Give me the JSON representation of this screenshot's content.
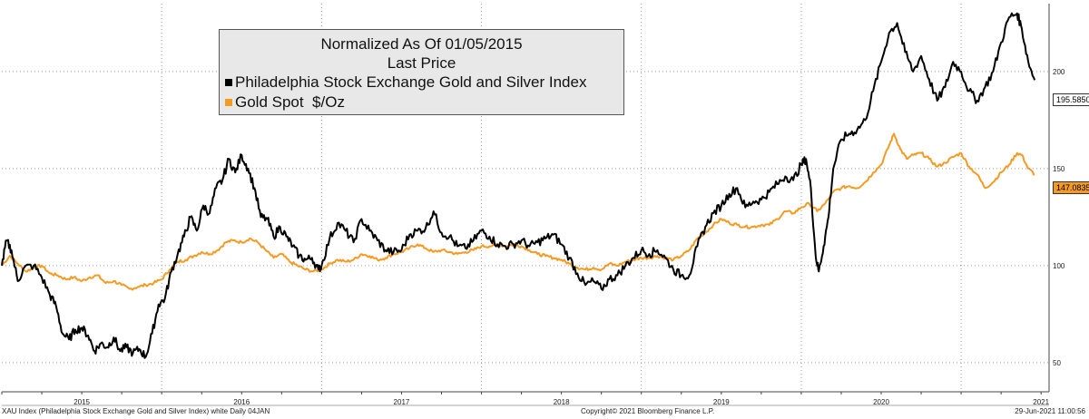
{
  "chart_data": {
    "type": "line",
    "legend": {
      "title_line1": "Normalized As Of 01/05/2015",
      "title_line2": "Last Price",
      "position": "top-center"
    },
    "x_tick_labels": [
      "2015",
      "2016",
      "2017",
      "2018",
      "2019",
      "2020",
      "2021"
    ],
    "y_tick_labels": [
      "50",
      "100",
      "150",
      "200"
    ],
    "ylim": [
      35,
      235
    ],
    "xlim": [
      2015.0,
      2021.55
    ],
    "grid": true,
    "colors": {
      "xau": "#000000",
      "gold": "#f59a23"
    },
    "series": [
      {
        "name": "Philadelphia Stock Exchange Gold and Silver Index",
        "last_value_label": "195.5850",
        "points": [
          [
            2015.0,
            100
          ],
          [
            2015.03,
            113
          ],
          [
            2015.06,
            108
          ],
          [
            2015.1,
            92
          ],
          [
            2015.14,
            99
          ],
          [
            2015.2,
            100
          ],
          [
            2015.25,
            94
          ],
          [
            2015.3,
            85
          ],
          [
            2015.34,
            79
          ],
          [
            2015.38,
            65
          ],
          [
            2015.42,
            62
          ],
          [
            2015.46,
            67
          ],
          [
            2015.5,
            68
          ],
          [
            2015.54,
            64
          ],
          [
            2015.58,
            56
          ],
          [
            2015.62,
            60
          ],
          [
            2015.66,
            58
          ],
          [
            2015.7,
            63
          ],
          [
            2015.74,
            56
          ],
          [
            2015.78,
            58
          ],
          [
            2015.82,
            55
          ],
          [
            2015.86,
            57
          ],
          [
            2015.9,
            53
          ],
          [
            2015.94,
            65
          ],
          [
            2015.98,
            80
          ],
          [
            2016.02,
            83
          ],
          [
            2016.06,
            97
          ],
          [
            2016.1,
            106
          ],
          [
            2016.14,
            115
          ],
          [
            2016.18,
            125
          ],
          [
            2016.22,
            118
          ],
          [
            2016.26,
            131
          ],
          [
            2016.3,
            127
          ],
          [
            2016.34,
            140
          ],
          [
            2016.38,
            144
          ],
          [
            2016.42,
            155
          ],
          [
            2016.46,
            148
          ],
          [
            2016.5,
            157
          ],
          [
            2016.54,
            150
          ],
          [
            2016.58,
            140
          ],
          [
            2016.62,
            125
          ],
          [
            2016.66,
            124
          ],
          [
            2016.7,
            115
          ],
          [
            2016.74,
            120
          ],
          [
            2016.78,
            115
          ],
          [
            2016.82,
            110
          ],
          [
            2016.86,
            105
          ],
          [
            2016.9,
            103
          ],
          [
            2016.94,
            104
          ],
          [
            2016.98,
            98
          ],
          [
            2017.0,
            100
          ],
          [
            2017.05,
            114
          ],
          [
            2017.1,
            122
          ],
          [
            2017.15,
            118
          ],
          [
            2017.2,
            112
          ],
          [
            2017.25,
            124
          ],
          [
            2017.3,
            118
          ],
          [
            2017.35,
            113
          ],
          [
            2017.4,
            108
          ],
          [
            2017.45,
            107
          ],
          [
            2017.5,
            108
          ],
          [
            2017.55,
            116
          ],
          [
            2017.6,
            118
          ],
          [
            2017.65,
            119
          ],
          [
            2017.7,
            128
          ],
          [
            2017.75,
            117
          ],
          [
            2017.8,
            115
          ],
          [
            2017.85,
            110
          ],
          [
            2017.9,
            109
          ],
          [
            2017.95,
            113
          ],
          [
            2018.0,
            118
          ],
          [
            2018.05,
            115
          ],
          [
            2018.1,
            111
          ],
          [
            2018.15,
            110
          ],
          [
            2018.2,
            111
          ],
          [
            2018.25,
            113
          ],
          [
            2018.3,
            110
          ],
          [
            2018.35,
            112
          ],
          [
            2018.4,
            114
          ],
          [
            2018.45,
            116
          ],
          [
            2018.5,
            111
          ],
          [
            2018.55,
            104
          ],
          [
            2018.6,
            96
          ],
          [
            2018.65,
            90
          ],
          [
            2018.7,
            92
          ],
          [
            2018.75,
            88
          ],
          [
            2018.8,
            93
          ],
          [
            2018.85,
            95
          ],
          [
            2018.9,
            100
          ],
          [
            2018.95,
            104
          ],
          [
            2019.0,
            108
          ],
          [
            2019.05,
            106
          ],
          [
            2019.1,
            108
          ],
          [
            2019.15,
            104
          ],
          [
            2019.2,
            98
          ],
          [
            2019.25,
            95
          ],
          [
            2019.3,
            95
          ],
          [
            2019.35,
            110
          ],
          [
            2019.4,
            120
          ],
          [
            2019.45,
            127
          ],
          [
            2019.5,
            131
          ],
          [
            2019.55,
            137
          ],
          [
            2019.6,
            140
          ],
          [
            2019.65,
            130
          ],
          [
            2019.7,
            133
          ],
          [
            2019.75,
            134
          ],
          [
            2019.8,
            138
          ],
          [
            2019.85,
            142
          ],
          [
            2019.9,
            146
          ],
          [
            2019.95,
            144
          ],
          [
            2020.0,
            152
          ],
          [
            2020.03,
            155
          ],
          [
            2020.06,
            140
          ],
          [
            2020.09,
            105
          ],
          [
            2020.11,
            97
          ],
          [
            2020.14,
            110
          ],
          [
            2020.17,
            125
          ],
          [
            2020.2,
            150
          ],
          [
            2020.25,
            165
          ],
          [
            2020.3,
            168
          ],
          [
            2020.35,
            170
          ],
          [
            2020.4,
            175
          ],
          [
            2020.45,
            190
          ],
          [
            2020.5,
            205
          ],
          [
            2020.55,
            220
          ],
          [
            2020.6,
            225
          ],
          [
            2020.65,
            210
          ],
          [
            2020.7,
            200
          ],
          [
            2020.75,
            208
          ],
          [
            2020.8,
            196
          ],
          [
            2020.85,
            185
          ],
          [
            2020.9,
            192
          ],
          [
            2020.95,
            205
          ],
          [
            2021.0,
            200
          ],
          [
            2021.05,
            190
          ],
          [
            2021.1,
            185
          ],
          [
            2021.15,
            192
          ],
          [
            2021.2,
            200
          ],
          [
            2021.25,
            215
          ],
          [
            2021.3,
            228
          ],
          [
            2021.35,
            230
          ],
          [
            2021.38,
            222
          ],
          [
            2021.42,
            205
          ],
          [
            2021.46,
            195.585
          ]
        ]
      },
      {
        "name": "Gold Spot  $/Oz",
        "last_value_label": "147.0835",
        "points": [
          [
            2015.0,
            100
          ],
          [
            2015.05,
            105
          ],
          [
            2015.1,
            101
          ],
          [
            2015.15,
            97
          ],
          [
            2015.2,
            99
          ],
          [
            2015.25,
            100
          ],
          [
            2015.3,
            96
          ],
          [
            2015.35,
            95
          ],
          [
            2015.4,
            93
          ],
          [
            2015.45,
            94
          ],
          [
            2015.5,
            92
          ],
          [
            2015.55,
            94
          ],
          [
            2015.6,
            95
          ],
          [
            2015.65,
            91
          ],
          [
            2015.7,
            92
          ],
          [
            2015.75,
            90
          ],
          [
            2015.8,
            88
          ],
          [
            2015.85,
            89
          ],
          [
            2015.9,
            90
          ],
          [
            2015.95,
            91
          ],
          [
            2016.0,
            93
          ],
          [
            2016.05,
            98
          ],
          [
            2016.1,
            102
          ],
          [
            2016.15,
            103
          ],
          [
            2016.2,
            105
          ],
          [
            2016.25,
            107
          ],
          [
            2016.3,
            106
          ],
          [
            2016.35,
            108
          ],
          [
            2016.4,
            112
          ],
          [
            2016.45,
            113
          ],
          [
            2016.5,
            112
          ],
          [
            2016.55,
            114
          ],
          [
            2016.6,
            112
          ],
          [
            2016.65,
            108
          ],
          [
            2016.7,
            104
          ],
          [
            2016.75,
            106
          ],
          [
            2016.8,
            102
          ],
          [
            2016.85,
            100
          ],
          [
            2016.9,
            98
          ],
          [
            2016.95,
            97
          ],
          [
            2017.0,
            98
          ],
          [
            2017.05,
            101
          ],
          [
            2017.1,
            103
          ],
          [
            2017.15,
            102
          ],
          [
            2017.2,
            103
          ],
          [
            2017.25,
            106
          ],
          [
            2017.3,
            105
          ],
          [
            2017.35,
            103
          ],
          [
            2017.4,
            104
          ],
          [
            2017.45,
            106
          ],
          [
            2017.5,
            107
          ],
          [
            2017.55,
            109
          ],
          [
            2017.6,
            111
          ],
          [
            2017.65,
            109
          ],
          [
            2017.7,
            107
          ],
          [
            2017.75,
            108
          ],
          [
            2017.8,
            107
          ],
          [
            2017.85,
            106
          ],
          [
            2017.9,
            107
          ],
          [
            2017.95,
            108
          ],
          [
            2018.0,
            110
          ],
          [
            2018.05,
            110
          ],
          [
            2018.1,
            111
          ],
          [
            2018.15,
            110
          ],
          [
            2018.2,
            111
          ],
          [
            2018.25,
            110
          ],
          [
            2018.3,
            108
          ],
          [
            2018.35,
            106
          ],
          [
            2018.4,
            105
          ],
          [
            2018.45,
            104
          ],
          [
            2018.5,
            103
          ],
          [
            2018.55,
            101
          ],
          [
            2018.6,
            99
          ],
          [
            2018.65,
            98
          ],
          [
            2018.7,
            99
          ],
          [
            2018.75,
            98
          ],
          [
            2018.8,
            101
          ],
          [
            2018.85,
            100
          ],
          [
            2018.9,
            102
          ],
          [
            2018.95,
            103
          ],
          [
            2019.0,
            104
          ],
          [
            2019.05,
            104
          ],
          [
            2019.1,
            105
          ],
          [
            2019.15,
            104
          ],
          [
            2019.2,
            103
          ],
          [
            2019.25,
            105
          ],
          [
            2019.3,
            108
          ],
          [
            2019.35,
            114
          ],
          [
            2019.4,
            117
          ],
          [
            2019.45,
            121
          ],
          [
            2019.5,
            124
          ],
          [
            2019.55,
            122
          ],
          [
            2019.6,
            121
          ],
          [
            2019.65,
            120
          ],
          [
            2019.7,
            120
          ],
          [
            2019.75,
            121
          ],
          [
            2019.8,
            121
          ],
          [
            2019.85,
            124
          ],
          [
            2019.9,
            128
          ],
          [
            2019.95,
            127
          ],
          [
            2020.0,
            130
          ],
          [
            2020.05,
            132
          ],
          [
            2020.1,
            128
          ],
          [
            2020.15,
            132
          ],
          [
            2020.2,
            138
          ],
          [
            2020.25,
            140
          ],
          [
            2020.3,
            141
          ],
          [
            2020.35,
            140
          ],
          [
            2020.4,
            143
          ],
          [
            2020.45,
            148
          ],
          [
            2020.5,
            152
          ],
          [
            2020.55,
            162
          ],
          [
            2020.58,
            168
          ],
          [
            2020.62,
            160
          ],
          [
            2020.66,
            155
          ],
          [
            2020.7,
            157
          ],
          [
            2020.75,
            158
          ],
          [
            2020.8,
            155
          ],
          [
            2020.85,
            151
          ],
          [
            2020.9,
            153
          ],
          [
            2020.95,
            156
          ],
          [
            2021.0,
            158
          ],
          [
            2021.05,
            151
          ],
          [
            2021.1,
            147
          ],
          [
            2021.15,
            140
          ],
          [
            2021.2,
            143
          ],
          [
            2021.25,
            148
          ],
          [
            2021.3,
            152
          ],
          [
            2021.35,
            158
          ],
          [
            2021.38,
            157
          ],
          [
            2021.42,
            150
          ],
          [
            2021.46,
            147.0835
          ]
        ]
      }
    ]
  },
  "footer": {
    "left": "XAU Index (Philadelphia Stock Exchange Gold and Silver Index) white  Daily 04JAN",
    "center": "Copyright© 2021 Bloomberg Finance L.P.",
    "right": "29-Jun-2021 11:00:56"
  }
}
